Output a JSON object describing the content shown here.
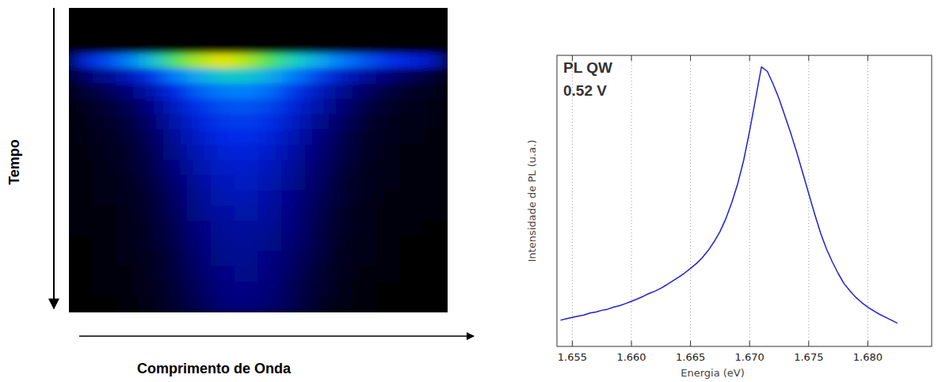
{
  "chart_data": [
    {
      "type": "heatmap",
      "xlabel": "Comprimento de Onda",
      "ylabel": "Tempo",
      "tick_labels": false,
      "zlim": [
        0,
        1
      ],
      "cells": [
        [
          0,
          0,
          0,
          0,
          0,
          0,
          0,
          0,
          0,
          0,
          0,
          0,
          0,
          0,
          0,
          0
        ],
        [
          0,
          0,
          0,
          0,
          0,
          0,
          0,
          0,
          0,
          0,
          0,
          0,
          0,
          0,
          0,
          0
        ],
        [
          0,
          0,
          0,
          0,
          0,
          0,
          0,
          0,
          0,
          0,
          0,
          0,
          0,
          0,
          0,
          0
        ],
        [
          0.25,
          0.35,
          0.45,
          0.6,
          0.75,
          0.85,
          0.9,
          0.85,
          0.75,
          0.65,
          0.55,
          0.45,
          0.38,
          0.32,
          0.28,
          0.22
        ],
        [
          0.1,
          0.15,
          0.22,
          0.32,
          0.45,
          0.55,
          0.62,
          0.62,
          0.55,
          0.45,
          0.35,
          0.25,
          0.18,
          0.12,
          0.08,
          0.05
        ],
        [
          0.05,
          0.08,
          0.12,
          0.2,
          0.3,
          0.4,
          0.45,
          0.46,
          0.42,
          0.33,
          0.24,
          0.16,
          0.1,
          0.06,
          0.04,
          0.03
        ],
        [
          0.03,
          0.05,
          0.08,
          0.14,
          0.24,
          0.32,
          0.37,
          0.38,
          0.35,
          0.28,
          0.2,
          0.12,
          0.07,
          0.04,
          0.03,
          0.02
        ],
        [
          0.02,
          0.04,
          0.06,
          0.11,
          0.2,
          0.28,
          0.33,
          0.34,
          0.31,
          0.24,
          0.16,
          0.1,
          0.05,
          0.03,
          0.02,
          0.02
        ],
        [
          0.02,
          0.03,
          0.05,
          0.09,
          0.17,
          0.25,
          0.3,
          0.31,
          0.28,
          0.21,
          0.14,
          0.08,
          0.04,
          0.03,
          0.02,
          0.01
        ],
        [
          0.01,
          0.03,
          0.04,
          0.08,
          0.15,
          0.22,
          0.27,
          0.28,
          0.25,
          0.19,
          0.12,
          0.07,
          0.04,
          0.02,
          0.01,
          0.01
        ],
        [
          0.01,
          0.02,
          0.04,
          0.07,
          0.13,
          0.2,
          0.25,
          0.26,
          0.23,
          0.17,
          0.11,
          0.06,
          0.03,
          0.02,
          0.01,
          0.01
        ],
        [
          0.01,
          0.02,
          0.03,
          0.06,
          0.11,
          0.18,
          0.23,
          0.24,
          0.21,
          0.15,
          0.1,
          0.05,
          0.03,
          0.02,
          0.01,
          0.01
        ],
        [
          0.01,
          0.02,
          0.03,
          0.05,
          0.1,
          0.16,
          0.21,
          0.22,
          0.19,
          0.14,
          0.09,
          0.05,
          0.03,
          0.01,
          0.01,
          0.01
        ],
        [
          0.01,
          0.01,
          0.02,
          0.05,
          0.09,
          0.15,
          0.19,
          0.2,
          0.18,
          0.13,
          0.08,
          0.04,
          0.02,
          0.01,
          0.01,
          0.01
        ],
        [
          0.01,
          0.01,
          0.02,
          0.04,
          0.08,
          0.13,
          0.17,
          0.18,
          0.16,
          0.12,
          0.07,
          0.04,
          0.02,
          0.01,
          0.01,
          0
        ],
        [
          0,
          0.01,
          0.02,
          0.04,
          0.07,
          0.12,
          0.16,
          0.17,
          0.15,
          0.11,
          0.07,
          0.03,
          0.02,
          0.01,
          0,
          0
        ],
        [
          0,
          0.01,
          0.02,
          0.03,
          0.06,
          0.11,
          0.15,
          0.16,
          0.14,
          0.1,
          0.06,
          0.03,
          0.02,
          0.01,
          0,
          0
        ],
        [
          0,
          0.01,
          0.01,
          0.03,
          0.06,
          0.1,
          0.14,
          0.15,
          0.13,
          0.09,
          0.05,
          0.03,
          0.01,
          0.01,
          0,
          0
        ],
        [
          0,
          0.01,
          0.01,
          0.03,
          0.05,
          0.09,
          0.13,
          0.14,
          0.12,
          0.08,
          0.05,
          0.02,
          0.01,
          0,
          0,
          0
        ],
        [
          0,
          0,
          0.01,
          0.02,
          0.05,
          0.08,
          0.12,
          0.13,
          0.11,
          0.08,
          0.04,
          0.02,
          0.01,
          0,
          0,
          0
        ]
      ]
    },
    {
      "type": "line",
      "xlabel": "Energia (eV)",
      "ylabel": "Intensidade de PL (u.a.)",
      "annotations": [
        "PL QW",
        "0.52 V"
      ],
      "x": [
        1.654,
        1.6545,
        1.655,
        1.6555,
        1.656,
        1.6565,
        1.657,
        1.6575,
        1.658,
        1.6585,
        1.659,
        1.6595,
        1.66,
        1.6605,
        1.661,
        1.6615,
        1.662,
        1.6625,
        1.663,
        1.6635,
        1.664,
        1.6645,
        1.665,
        1.6655,
        1.666,
        1.6665,
        1.667,
        1.6675,
        1.668,
        1.6685,
        1.669,
        1.6695,
        1.67,
        1.6705,
        1.671,
        1.6715,
        1.672,
        1.6725,
        1.673,
        1.6735,
        1.674,
        1.6745,
        1.675,
        1.6755,
        1.676,
        1.6765,
        1.677,
        1.6775,
        1.678,
        1.6785,
        1.679,
        1.6795,
        1.68,
        1.6805,
        1.681,
        1.6815,
        1.682,
        1.6825
      ],
      "series": [
        {
          "color": "#2020d0",
          "values": [
            0.09,
            0.095,
            0.1,
            0.104,
            0.108,
            0.115,
            0.118,
            0.124,
            0.128,
            0.135,
            0.14,
            0.147,
            0.155,
            0.163,
            0.172,
            0.182,
            0.19,
            0.2,
            0.212,
            0.225,
            0.238,
            0.252,
            0.268,
            0.285,
            0.305,
            0.33,
            0.36,
            0.395,
            0.44,
            0.495,
            0.56,
            0.64,
            0.74,
            0.85,
            0.96,
            0.945,
            0.9,
            0.85,
            0.79,
            0.73,
            0.665,
            0.595,
            0.525,
            0.455,
            0.39,
            0.335,
            0.29,
            0.25,
            0.215,
            0.19,
            0.168,
            0.15,
            0.135,
            0.122,
            0.11,
            0.1,
            0.09,
            0.08
          ]
        }
      ],
      "xlim": [
        1.6537,
        1.6854
      ],
      "ylim": [
        0,
        1
      ],
      "xticks": [
        1.655,
        {
          "value": 1.66,
          "label": "1.660"
        },
        1.665,
        {
          "value": 1.67,
          "label": "1.670"
        },
        1.675,
        {
          "value": 1.68,
          "label": "1.680"
        }
      ],
      "yticks": [],
      "grid": true,
      "tick_labels": "x"
    }
  ]
}
